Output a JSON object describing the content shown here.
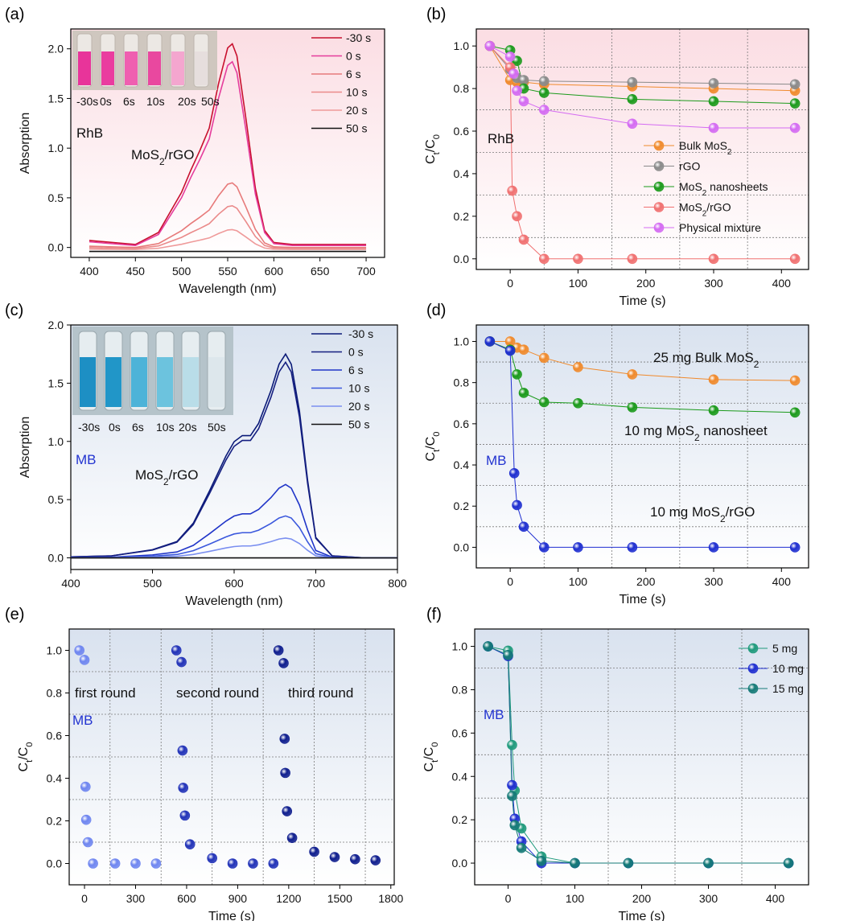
{
  "chart_data": [
    {
      "panel": "(a)",
      "type": "line",
      "xlabel": "Wavelength (nm)",
      "ylabel": "Absorption",
      "xlim": [
        380,
        720
      ],
      "ylim": [
        -0.1,
        2.2
      ],
      "xticks": [
        400,
        450,
        500,
        550,
        600,
        650,
        700
      ],
      "yticks": [
        0.0,
        0.5,
        1.0,
        1.5,
        2.0
      ],
      "ytick_labels": [
        "0.0",
        "0.5",
        "1.0",
        "1.5",
        "2.0"
      ],
      "annotations": [
        "RhB",
        "MoS2/rGO"
      ],
      "inset_labels": [
        "-30s",
        "0s",
        "6s",
        "10s",
        "20s",
        "50s"
      ],
      "inset_colors": [
        "#e8349a",
        "#ea3c9f",
        "#ef5fb0",
        "#e9489f",
        "#f4a6cf",
        "#e6dedd"
      ],
      "legend_position": "top-right",
      "series": [
        {
          "name": "-30 s",
          "color": "#c8102e",
          "peak": 2.05,
          "base": 0.03
        },
        {
          "name": "0 s",
          "color": "#e53c9c",
          "peak": 1.87,
          "base": 0.02
        },
        {
          "name": "6 s",
          "color": "#e77a7a",
          "peak": 0.65,
          "base": 0.0
        },
        {
          "name": "10 s",
          "color": "#ea8a8a",
          "peak": 0.42,
          "base": -0.01
        },
        {
          "name": "20 s",
          "color": "#ef9a9a",
          "peak": 0.18,
          "base": -0.02
        },
        {
          "name": "50 s",
          "color": "#111111",
          "peak": 0.0,
          "base": -0.04
        }
      ],
      "x": [
        400,
        450,
        475,
        500,
        510,
        520,
        530,
        540,
        550,
        555,
        560,
        570,
        580,
        590,
        600,
        620,
        650,
        700
      ],
      "shape": [
        0.02,
        0.0,
        0.06,
        0.26,
        0.37,
        0.47,
        0.58,
        0.8,
        0.98,
        1.0,
        0.94,
        0.62,
        0.28,
        0.07,
        0.01,
        0.0,
        0.0,
        0.0
      ]
    },
    {
      "panel": "(b)",
      "type": "scatter",
      "xlabel": "Time (s)",
      "ylabel": "Ct/C0",
      "xlim": [
        -50,
        440
      ],
      "ylim": [
        -0.05,
        1.08
      ],
      "xticks": [
        0,
        100,
        200,
        300,
        400
      ],
      "yticks": [
        0.0,
        0.2,
        0.4,
        0.6,
        0.8,
        1.0
      ],
      "ytick_labels": [
        "0.0",
        "0.2",
        "0.4",
        "0.6",
        "0.8",
        "1.0"
      ],
      "vgrid": [
        50,
        150,
        250,
        350
      ],
      "hgrid": [
        0.1,
        0.3,
        0.5,
        0.7,
        0.9
      ],
      "annotations": [
        "RhB"
      ],
      "legend_position": "center-right",
      "series": [
        {
          "name": "Bulk MoS2",
          "color": "#f08a2c",
          "x": [
            -30,
            0,
            10,
            20,
            50,
            180,
            300,
            420
          ],
          "y": [
            1.0,
            0.84,
            0.83,
            0.83,
            0.82,
            0.81,
            0.8,
            0.79
          ]
        },
        {
          "name": "rGO",
          "color": "#8a8a8a",
          "x": [
            -30,
            0,
            10,
            20,
            50,
            180,
            300,
            420
          ],
          "y": [
            1.0,
            0.89,
            0.85,
            0.84,
            0.835,
            0.83,
            0.825,
            0.82
          ]
        },
        {
          "name": "MoS2 nanosheets",
          "color": "#1b9a1b",
          "x": [
            -30,
            0,
            10,
            20,
            50,
            180,
            300,
            420
          ],
          "y": [
            1.0,
            0.98,
            0.93,
            0.8,
            0.78,
            0.75,
            0.74,
            0.73
          ]
        },
        {
          "name": "MoS2/rGO",
          "color": "#f07070",
          "x": [
            -30,
            0,
            3,
            10,
            20,
            50,
            100,
            180,
            300,
            420
          ],
          "y": [
            1.0,
            0.9,
            0.32,
            0.2,
            0.09,
            0.0,
            0.0,
            0.0,
            0.0,
            0.0
          ]
        },
        {
          "name": "Physical mixture",
          "color": "#d46bf2",
          "x": [
            -30,
            0,
            5,
            10,
            20,
            50,
            180,
            300,
            420
          ],
          "y": [
            1.0,
            0.95,
            0.87,
            0.79,
            0.74,
            0.7,
            0.635,
            0.615,
            0.615
          ]
        }
      ]
    },
    {
      "panel": "(c)",
      "type": "line",
      "xlabel": "Wavelength (nm)",
      "ylabel": "Absorption",
      "xlim": [
        400,
        800
      ],
      "ylim": [
        -0.1,
        2.0
      ],
      "xticks": [
        400,
        500,
        600,
        700,
        800
      ],
      "yticks": [
        0.0,
        0.5,
        1.0,
        1.5,
        2.0
      ],
      "ytick_labels": [
        "0.0",
        "0.5",
        "1.0",
        "1.5",
        "2.0"
      ],
      "annotations": [
        "MB",
        "MoS2/rGO"
      ],
      "inset_labels": [
        "-30s",
        "0s",
        "6s",
        "10s",
        "20s",
        "50s"
      ],
      "inset_colors": [
        "#1d8fc4",
        "#2196c8",
        "#4db3d8",
        "#6cc3de",
        "#b9dde8",
        "#dde7ec"
      ],
      "legend_position": "top-right",
      "series": [
        {
          "name": "-30 s",
          "color": "#0a1a78",
          "peak": 1.75
        },
        {
          "name": "0 s",
          "color": "#141e80",
          "peak": 1.68
        },
        {
          "name": "6 s",
          "color": "#2035c8",
          "peak": 0.63
        },
        {
          "name": "10 s",
          "color": "#3b58dd",
          "peak": 0.36
        },
        {
          "name": "20 s",
          "color": "#7b8ff0",
          "peak": 0.17
        },
        {
          "name": "50 s",
          "color": "#111111",
          "peak": 0.0
        }
      ],
      "x": [
        400,
        450,
        500,
        530,
        550,
        570,
        590,
        600,
        610,
        615,
        620,
        630,
        645,
        655,
        663,
        670,
        680,
        690,
        700,
        720,
        760,
        800
      ],
      "shape": [
        0.005,
        0.01,
        0.04,
        0.08,
        0.17,
        0.33,
        0.5,
        0.57,
        0.6,
        0.6,
        0.6,
        0.66,
        0.82,
        0.95,
        1.0,
        0.95,
        0.72,
        0.38,
        0.1,
        0.01,
        0.0,
        0.0
      ]
    },
    {
      "panel": "(d)",
      "type": "scatter",
      "xlabel": "Time (s)",
      "ylabel": "Ct/C0",
      "xlim": [
        -50,
        440
      ],
      "ylim": [
        -0.1,
        1.08
      ],
      "xticks": [
        0,
        100,
        200,
        300,
        400
      ],
      "yticks": [
        0.0,
        0.2,
        0.4,
        0.6,
        0.8,
        1.0
      ],
      "ytick_labels": [
        "0.0",
        "0.2",
        "0.4",
        "0.6",
        "0.8",
        "1.0"
      ],
      "vgrid": [
        50,
        150,
        250,
        350
      ],
      "hgrid": [
        0.1,
        0.3,
        0.5,
        0.7,
        0.9
      ],
      "annotations": [
        "MB",
        "25 mg Bulk MoS2",
        "10 mg MoS2 nanosheet",
        "10 mg MoS2/rGO"
      ],
      "series": [
        {
          "name": "25 mg Bulk MoS2",
          "color": "#f08a2c",
          "x": [
            -30,
            0,
            10,
            20,
            50,
            100,
            180,
            300,
            420
          ],
          "y": [
            1.0,
            1.0,
            0.97,
            0.96,
            0.92,
            0.875,
            0.84,
            0.815,
            0.81
          ]
        },
        {
          "name": "10 mg MoS2 nanosheet",
          "color": "#1b9a1b",
          "x": [
            -30,
            0,
            10,
            20,
            50,
            100,
            180,
            300,
            420
          ],
          "y": [
            1.0,
            0.96,
            0.84,
            0.75,
            0.705,
            0.7,
            0.68,
            0.665,
            0.655
          ]
        },
        {
          "name": "10 mg MoS2/rGO",
          "color": "#1f2fd0",
          "x": [
            -30,
            0,
            6,
            10,
            20,
            50,
            100,
            180,
            300,
            420
          ],
          "y": [
            1.0,
            0.955,
            0.36,
            0.205,
            0.1,
            0.0,
            0.0,
            0.0,
            0.0,
            0.0
          ]
        }
      ]
    },
    {
      "panel": "(e)",
      "type": "scatter",
      "xlabel": "Time (s)",
      "ylabel": "Ct/C0",
      "xlim": [
        -90,
        1820
      ],
      "ylim": [
        -0.1,
        1.1
      ],
      "xticks": [
        0,
        300,
        600,
        900,
        1200,
        1500,
        1800
      ],
      "yticks": [
        0.0,
        0.2,
        0.4,
        0.6,
        0.8,
        1.0
      ],
      "ytick_labels": [
        "0.0",
        "0.2",
        "0.4",
        "0.6",
        "0.8",
        "1.0"
      ],
      "vgrid": [
        150,
        450,
        750,
        1050,
        1350,
        1650
      ],
      "hgrid": [
        0.1,
        0.3,
        0.5,
        0.7,
        0.9
      ],
      "annotations": [
        "MB",
        "first round",
        "second round",
        "third round"
      ],
      "series": [
        {
          "name": "first round",
          "color": "#6f86f0",
          "x": [
            -30,
            0,
            6,
            10,
            20,
            50,
            180,
            300,
            420
          ],
          "y": [
            1.0,
            0.955,
            0.36,
            0.205,
            0.1,
            0.0,
            0.0,
            0.0,
            0.0
          ]
        },
        {
          "name": "second round",
          "color": "#2233b8",
          "x": [
            540,
            570,
            576,
            580,
            590,
            620,
            750,
            870,
            990,
            1110
          ],
          "y": [
            1.0,
            0.945,
            0.53,
            0.355,
            0.225,
            0.09,
            0.025,
            0.0,
            0.0,
            0.0
          ]
        },
        {
          "name": "third round",
          "color": "#0f1e8e",
          "x": [
            1140,
            1170,
            1176,
            1180,
            1190,
            1220,
            1350,
            1470,
            1590,
            1710
          ],
          "y": [
            1.0,
            0.94,
            0.585,
            0.425,
            0.245,
            0.12,
            0.055,
            0.03,
            0.02,
            0.015
          ]
        }
      ]
    },
    {
      "panel": "(f)",
      "type": "scatter",
      "xlabel": "Time (s)",
      "ylabel": "Ct/C0",
      "xlim": [
        -50,
        450
      ],
      "ylim": [
        -0.1,
        1.08
      ],
      "xticks": [
        0,
        100,
        200,
        300,
        400
      ],
      "yticks": [
        0.0,
        0.2,
        0.4,
        0.6,
        0.8,
        1.0
      ],
      "ytick_labels": [
        "0.0",
        "0.2",
        "0.4",
        "0.6",
        "0.8",
        "1.0"
      ],
      "vgrid": [
        50,
        150,
        250,
        350
      ],
      "hgrid": [
        0.1,
        0.3,
        0.5,
        0.7,
        0.9
      ],
      "annotations": [
        "MB"
      ],
      "legend_position": "top-right",
      "series": [
        {
          "name": "5 mg",
          "color": "#1f9a7c",
          "x": [
            -30,
            0,
            6,
            10,
            20,
            50,
            100,
            180,
            300,
            420
          ],
          "y": [
            1.0,
            0.98,
            0.545,
            0.335,
            0.16,
            0.03,
            0.0,
            0.0,
            0.0,
            0.0
          ]
        },
        {
          "name": "10 mg",
          "color": "#1f2fd0",
          "x": [
            -30,
            0,
            6,
            10,
            20,
            50,
            100,
            180,
            300,
            420
          ],
          "y": [
            1.0,
            0.955,
            0.36,
            0.205,
            0.1,
            0.0,
            0.0,
            0.0,
            0.0,
            0.0
          ]
        },
        {
          "name": "15 mg",
          "color": "#157a77",
          "x": [
            -30,
            0,
            6,
            10,
            20,
            50,
            100,
            180,
            300,
            420
          ],
          "y": [
            1.0,
            0.96,
            0.31,
            0.175,
            0.07,
            0.01,
            0.0,
            0.0,
            0.0,
            0.0
          ]
        }
      ]
    }
  ]
}
